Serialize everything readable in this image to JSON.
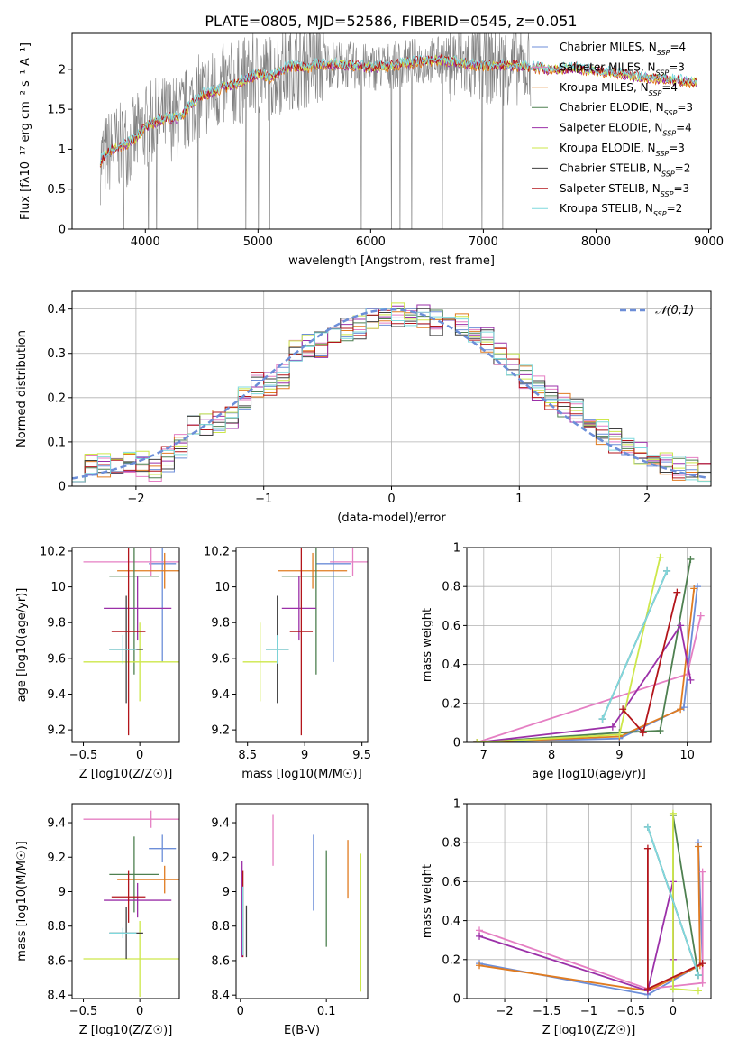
{
  "title": "PLATE=0805, MJD=52586, FIBERID=0545, z=0.051",
  "colors": {
    "chabrier_miles": "#6c8ed8",
    "salpeter_miles": "#e57fc3",
    "kroupa_miles": "#e07b20",
    "chabrier_elodie": "#4e8050",
    "salpeter_elodie": "#9b30a8",
    "kroupa_elodie": "#cde74a",
    "chabrier_stelib": "#3f3f3f",
    "salpeter_stelib": "#b3151b",
    "kroupa_stelib": "#7fd9de",
    "data": "#808080",
    "normal": "#6c8ed8"
  },
  "chart_data": [
    {
      "id": "spectrum",
      "type": "line",
      "xlabel": "wavelength [Angstrom, rest frame]",
      "ylabel": "Flux [fλ10⁻¹⁷ erg cm⁻² s⁻¹ A⁻¹]",
      "xlim": [
        3350,
        9020
      ],
      "ylim": [
        0,
        2.45
      ],
      "xticks": [
        4000,
        5000,
        6000,
        7000,
        8000,
        9000
      ],
      "yticks": [
        0.0,
        0.5,
        1.0,
        1.5,
        2.0
      ],
      "model_curve": {
        "x": [
          3600,
          3700,
          3800,
          3900,
          4000,
          4100,
          4200,
          4300,
          4400,
          4500,
          4600,
          4700,
          4800,
          4900,
          5000,
          5100,
          5200,
          5300,
          5400,
          5500,
          5600,
          5800,
          6000,
          6200,
          6400,
          6600,
          6800,
          7000,
          7200,
          7400,
          7600,
          7800,
          8000,
          8200,
          8400,
          8600,
          8800,
          8900
        ],
        "y": [
          0.85,
          1.0,
          1.05,
          1.12,
          1.28,
          1.35,
          1.4,
          1.38,
          1.55,
          1.68,
          1.72,
          1.78,
          1.82,
          1.88,
          1.95,
          1.9,
          1.98,
          2.05,
          2.02,
          2.05,
          2.07,
          2.05,
          2.02,
          2.05,
          2.1,
          2.12,
          2.08,
          2.05,
          2.05,
          2.03,
          2.0,
          2.02,
          1.98,
          1.95,
          1.9,
          1.88,
          1.85,
          1.83
        ]
      },
      "data_range": [
        3600,
        7420
      ],
      "legend": [
        {
          "label": "Chabrier MILES, N_SSP=4",
          "color_key": "chabrier_miles"
        },
        {
          "label": "Salpeter MILES, N_SSP=3",
          "color_key": "salpeter_miles"
        },
        {
          "label": "Kroupa MILES, N_SSP=4",
          "color_key": "kroupa_miles"
        },
        {
          "label": "Chabrier ELODIE, N_SSP=3",
          "color_key": "chabrier_elodie"
        },
        {
          "label": "Salpeter ELODIE, N_SSP=4",
          "color_key": "salpeter_elodie"
        },
        {
          "label": "Kroupa ELODIE, N_SSP=3",
          "color_key": "kroupa_elodie"
        },
        {
          "label": "Chabrier STELIB, N_SSP=2",
          "color_key": "chabrier_stelib"
        },
        {
          "label": "Salpeter STELIB, N_SSP=3",
          "color_key": "salpeter_stelib"
        },
        {
          "label": "Kroupa STELIB, N_SSP=2",
          "color_key": "kroupa_stelib"
        }
      ]
    },
    {
      "id": "residuals",
      "type": "line",
      "xlabel": "(data-model)/error",
      "ylabel": "Normed distribution",
      "xlim": [
        -2.5,
        2.5
      ],
      "ylim": [
        0,
        0.44
      ],
      "xticks": [
        -2,
        -1,
        0,
        1,
        2
      ],
      "yticks": [
        0.0,
        0.1,
        0.2,
        0.3,
        0.4
      ],
      "grid": true,
      "legend": [
        {
          "label": "𝒩(0,1)",
          "color_key": "normal"
        }
      ],
      "bin_width": 0.1,
      "base_hist": [
        0.04,
        0.05,
        0.05,
        0.05,
        0.05,
        0.05,
        0.04,
        0.06,
        0.09,
        0.13,
        0.14,
        0.15,
        0.15,
        0.2,
        0.23,
        0.23,
        0.25,
        0.3,
        0.32,
        0.32,
        0.33,
        0.35,
        0.36,
        0.38,
        0.38,
        0.39,
        0.38,
        0.38,
        0.37,
        0.36,
        0.37,
        0.35,
        0.33,
        0.3,
        0.28,
        0.25,
        0.22,
        0.2,
        0.18,
        0.17,
        0.14,
        0.12,
        0.1,
        0.08,
        0.07,
        0.06,
        0.05,
        0.04,
        0.04,
        0.03
      ]
    },
    {
      "id": "age_vs_z",
      "type": "scatter",
      "xlabel": "Z [log10(Z/Z☉)]",
      "ylabel": "age  [log10(age/yr)]",
      "xlim": [
        -0.6,
        0.35
      ],
      "ylim": [
        9.13,
        10.22
      ],
      "xticks": [
        -0.5,
        0.0
      ],
      "yticks": [
        9.2,
        9.4,
        9.6,
        9.8,
        10.0,
        10.2
      ],
      "points": [
        {
          "key": "chabrier_miles",
          "x": 0.2,
          "y": 10.13,
          "xerr": 0.12,
          "yerr": 0.55
        },
        {
          "key": "salpeter_miles",
          "x": 0.1,
          "y": 10.14,
          "xerr": 0.6,
          "yerr": 0.08
        },
        {
          "key": "kroupa_miles",
          "x": 0.22,
          "y": 10.09,
          "xerr": 0.42,
          "yerr": 0.1
        },
        {
          "key": "chabrier_elodie",
          "x": -0.05,
          "y": 10.06,
          "xerr": 0.22,
          "yerr": 0.55
        },
        {
          "key": "salpeter_elodie",
          "x": -0.02,
          "y": 9.88,
          "xerr": 0.3,
          "yerr": 0.18
        },
        {
          "key": "kroupa_elodie",
          "x": 0.0,
          "y": 9.58,
          "xerr": 0.5,
          "yerr": 0.22
        },
        {
          "key": "chabrier_stelib",
          "x": -0.12,
          "y": 9.65,
          "xerr": 0.15,
          "yerr": 0.3
        },
        {
          "key": "salpeter_stelib",
          "x": -0.1,
          "y": 9.75,
          "xerr": 0.15,
          "yerr": 0.58
        },
        {
          "key": "kroupa_stelib",
          "x": -0.15,
          "y": 9.65,
          "xerr": 0.12,
          "yerr": 0.08
        }
      ]
    },
    {
      "id": "age_vs_mass",
      "type": "scatter",
      "xlabel": "mass [log10(M/M☉)]",
      "ylabel": "",
      "xlim": [
        8.4,
        9.55
      ],
      "ylim": [
        9.13,
        10.22
      ],
      "xticks": [
        8.5,
        9.0,
        9.5
      ],
      "yticks": [
        9.2,
        9.4,
        9.6,
        9.8,
        10.0,
        10.2
      ],
      "points": [
        {
          "key": "chabrier_miles",
          "x": 9.25,
          "y": 10.13,
          "xerr": 0.15,
          "yerr": 0.55
        },
        {
          "key": "salpeter_miles",
          "x": 9.42,
          "y": 10.14,
          "xerr": 0.2,
          "yerr": 0.08
        },
        {
          "key": "kroupa_miles",
          "x": 9.07,
          "y": 10.09,
          "xerr": 0.3,
          "yerr": 0.1
        },
        {
          "key": "chabrier_elodie",
          "x": 9.1,
          "y": 10.06,
          "xerr": 0.3,
          "yerr": 0.55
        },
        {
          "key": "salpeter_elodie",
          "x": 8.95,
          "y": 9.88,
          "xerr": 0.15,
          "yerr": 0.18
        },
        {
          "key": "kroupa_elodie",
          "x": 8.61,
          "y": 9.58,
          "xerr": 0.15,
          "yerr": 0.22
        },
        {
          "key": "chabrier_stelib",
          "x": 8.76,
          "y": 9.65,
          "xerr": 0.1,
          "yerr": 0.3
        },
        {
          "key": "salpeter_stelib",
          "x": 8.97,
          "y": 9.75,
          "xerr": 0.1,
          "yerr": 0.58
        },
        {
          "key": "kroupa_stelib",
          "x": 8.76,
          "y": 9.65,
          "xerr": 0.1,
          "yerr": 0.08
        }
      ]
    },
    {
      "id": "weight_vs_age",
      "type": "line",
      "xlabel": "age  [log10(age/yr)]",
      "ylabel": "mass weight",
      "xlim": [
        6.75,
        10.35
      ],
      "ylim": [
        0,
        1.0
      ],
      "xticks": [
        7,
        8,
        9,
        10
      ],
      "yticks": [
        0.0,
        0.2,
        0.4,
        0.6,
        0.8,
        1.0
      ],
      "grid": true,
      "series": [
        {
          "key": "chabrier_miles",
          "x": [
            6.9,
            9.0,
            9.95,
            10.15
          ],
          "y": [
            0.0,
            0.02,
            0.18,
            0.8
          ]
        },
        {
          "key": "salpeter_miles",
          "x": [
            6.9,
            10.0,
            10.2
          ],
          "y": [
            0.0,
            0.35,
            0.65
          ]
        },
        {
          "key": "kroupa_miles",
          "x": [
            6.9,
            9.0,
            9.9,
            10.1
          ],
          "y": [
            0.0,
            0.03,
            0.17,
            0.79
          ]
        },
        {
          "key": "chabrier_elodie",
          "x": [
            6.9,
            9.0,
            9.6,
            10.05
          ],
          "y": [
            0.0,
            0.05,
            0.06,
            0.94
          ]
        },
        {
          "key": "salpeter_elodie",
          "x": [
            6.9,
            8.9,
            9.9,
            10.05
          ],
          "y": [
            0.0,
            0.08,
            0.6,
            0.32
          ]
        },
        {
          "key": "kroupa_elodie",
          "x": [
            6.9,
            9.0,
            9.6
          ],
          "y": [
            0.0,
            0.04,
            0.95
          ]
        },
        {
          "key": "chabrier_stelib",
          "x": [
            8.75,
            9.7
          ],
          "y": [
            0.12,
            0.88
          ]
        },
        {
          "key": "salpeter_stelib",
          "x": [
            9.05,
            9.35,
            9.85
          ],
          "y": [
            0.17,
            0.05,
            0.77
          ]
        },
        {
          "key": "kroupa_stelib",
          "x": [
            8.75,
            9.7
          ],
          "y": [
            0.12,
            0.88
          ]
        }
      ]
    },
    {
      "id": "mass_vs_z",
      "type": "scatter",
      "xlabel": "Z [log10(Z/Z☉)]",
      "ylabel": "mass [log10(M/M☉)]",
      "xlim": [
        -0.6,
        0.35
      ],
      "ylim": [
        8.38,
        9.51
      ],
      "xticks": [
        -0.5,
        0.0
      ],
      "yticks": [
        8.4,
        8.6,
        8.8,
        9.0,
        9.2,
        9.4
      ],
      "points": [
        {
          "key": "chabrier_miles",
          "x": 0.2,
          "y": 9.25,
          "xerr": 0.12,
          "yerr": 0.08
        },
        {
          "key": "salpeter_miles",
          "x": 0.1,
          "y": 9.42,
          "xerr": 0.6,
          "yerr": 0.05
        },
        {
          "key": "kroupa_miles",
          "x": 0.22,
          "y": 9.07,
          "xerr": 0.42,
          "yerr": 0.08
        },
        {
          "key": "chabrier_elodie",
          "x": -0.05,
          "y": 9.1,
          "xerr": 0.22,
          "yerr": 0.22
        },
        {
          "key": "salpeter_elodie",
          "x": -0.02,
          "y": 8.95,
          "xerr": 0.3,
          "yerr": 0.1
        },
        {
          "key": "kroupa_elodie",
          "x": 0.0,
          "y": 8.61,
          "xerr": 0.5,
          "yerr": 0.22
        },
        {
          "key": "chabrier_stelib",
          "x": -0.12,
          "y": 8.76,
          "xerr": 0.15,
          "yerr": 0.15
        },
        {
          "key": "salpeter_stelib",
          "x": -0.1,
          "y": 8.97,
          "xerr": 0.15,
          "yerr": 0.15
        },
        {
          "key": "kroupa_stelib",
          "x": -0.15,
          "y": 8.76,
          "xerr": 0.12,
          "yerr": 0.03
        }
      ]
    },
    {
      "id": "mass_vs_ebv",
      "type": "scatter",
      "xlabel": "E(B-V)",
      "ylabel": "",
      "xlim": [
        -0.005,
        0.148
      ],
      "ylim": [
        8.38,
        9.51
      ],
      "xticks": [
        0.0,
        0.1
      ],
      "yticks": [
        8.4,
        8.6,
        8.8,
        9.0,
        9.2,
        9.4
      ],
      "points": [
        {
          "key": "chabrier_miles",
          "x": 0.085,
          "y": 9.11,
          "xerr": 0,
          "yerr": 0.22
        },
        {
          "key": "salpeter_miles",
          "x": 0.038,
          "y": 9.3,
          "xerr": 0,
          "yerr": 0.15
        },
        {
          "key": "kroupa_miles",
          "x": 0.125,
          "y": 9.13,
          "xerr": 0,
          "yerr": 0.17
        },
        {
          "key": "chabrier_elodie",
          "x": 0.1,
          "y": 8.96,
          "xerr": 0,
          "yerr": 0.28
        },
        {
          "key": "salpeter_elodie",
          "x": 0.002,
          "y": 8.9,
          "xerr": 0,
          "yerr": 0.28
        },
        {
          "key": "kroupa_elodie",
          "x": 0.14,
          "y": 8.82,
          "xerr": 0,
          "yerr": 0.4
        },
        {
          "key": "chabrier_stelib",
          "x": 0.007,
          "y": 8.77,
          "xerr": 0,
          "yerr": 0.15
        },
        {
          "key": "salpeter_stelib",
          "x": 0.003,
          "y": 8.87,
          "xerr": 0,
          "yerr": 0.25
        },
        {
          "key": "kroupa_stelib",
          "x": 0.003,
          "y": 8.83,
          "xerr": 0,
          "yerr": 0.2
        }
      ]
    },
    {
      "id": "weight_vs_z",
      "type": "line",
      "xlabel": "Z [log10(Z/Z☉)]",
      "ylabel": "mass weight",
      "xlim": [
        -2.45,
        0.45
      ],
      "ylim": [
        0,
        1.0
      ],
      "xticks": [
        -2.0,
        -1.5,
        -1.0,
        -0.5,
        0.0
      ],
      "yticks": [
        0.0,
        0.2,
        0.4,
        0.6,
        0.8,
        1.0
      ],
      "grid": true,
      "series": [
        {
          "key": "chabrier_miles",
          "x": [
            -2.3,
            -0.3,
            0.35,
            0.3
          ],
          "y": [
            0.18,
            0.02,
            0.18,
            0.8
          ]
        },
        {
          "key": "salpeter_miles",
          "x": [
            -2.3,
            -0.3,
            0.35,
            0.35
          ],
          "y": [
            0.35,
            0.05,
            0.08,
            0.65
          ]
        },
        {
          "key": "kroupa_miles",
          "x": [
            -2.3,
            -0.3,
            0.32,
            0.3
          ],
          "y": [
            0.17,
            0.04,
            0.17,
            0.78
          ]
        },
        {
          "key": "chabrier_elodie",
          "x": [
            0.0,
            0.0,
            0.3
          ],
          "y": [
            0.05,
            0.94,
            0.12
          ]
        },
        {
          "key": "salpeter_elodie",
          "x": [
            -2.3,
            -0.3,
            0.0,
            0.0
          ],
          "y": [
            0.32,
            0.04,
            0.6,
            0.2
          ]
        },
        {
          "key": "kroupa_elodie",
          "x": [
            0.0,
            0.0,
            0.3
          ],
          "y": [
            0.95,
            0.05,
            0.04
          ]
        },
        {
          "key": "chabrier_stelib",
          "x": [
            0.3,
            -0.3
          ],
          "y": [
            0.12,
            0.88
          ]
        },
        {
          "key": "salpeter_stelib",
          "x": [
            -0.3,
            -0.3,
            0.35
          ],
          "y": [
            0.77,
            0.05,
            0.18
          ]
        },
        {
          "key": "kroupa_stelib",
          "x": [
            0.3,
            -0.3
          ],
          "y": [
            0.12,
            0.88
          ]
        }
      ]
    }
  ]
}
